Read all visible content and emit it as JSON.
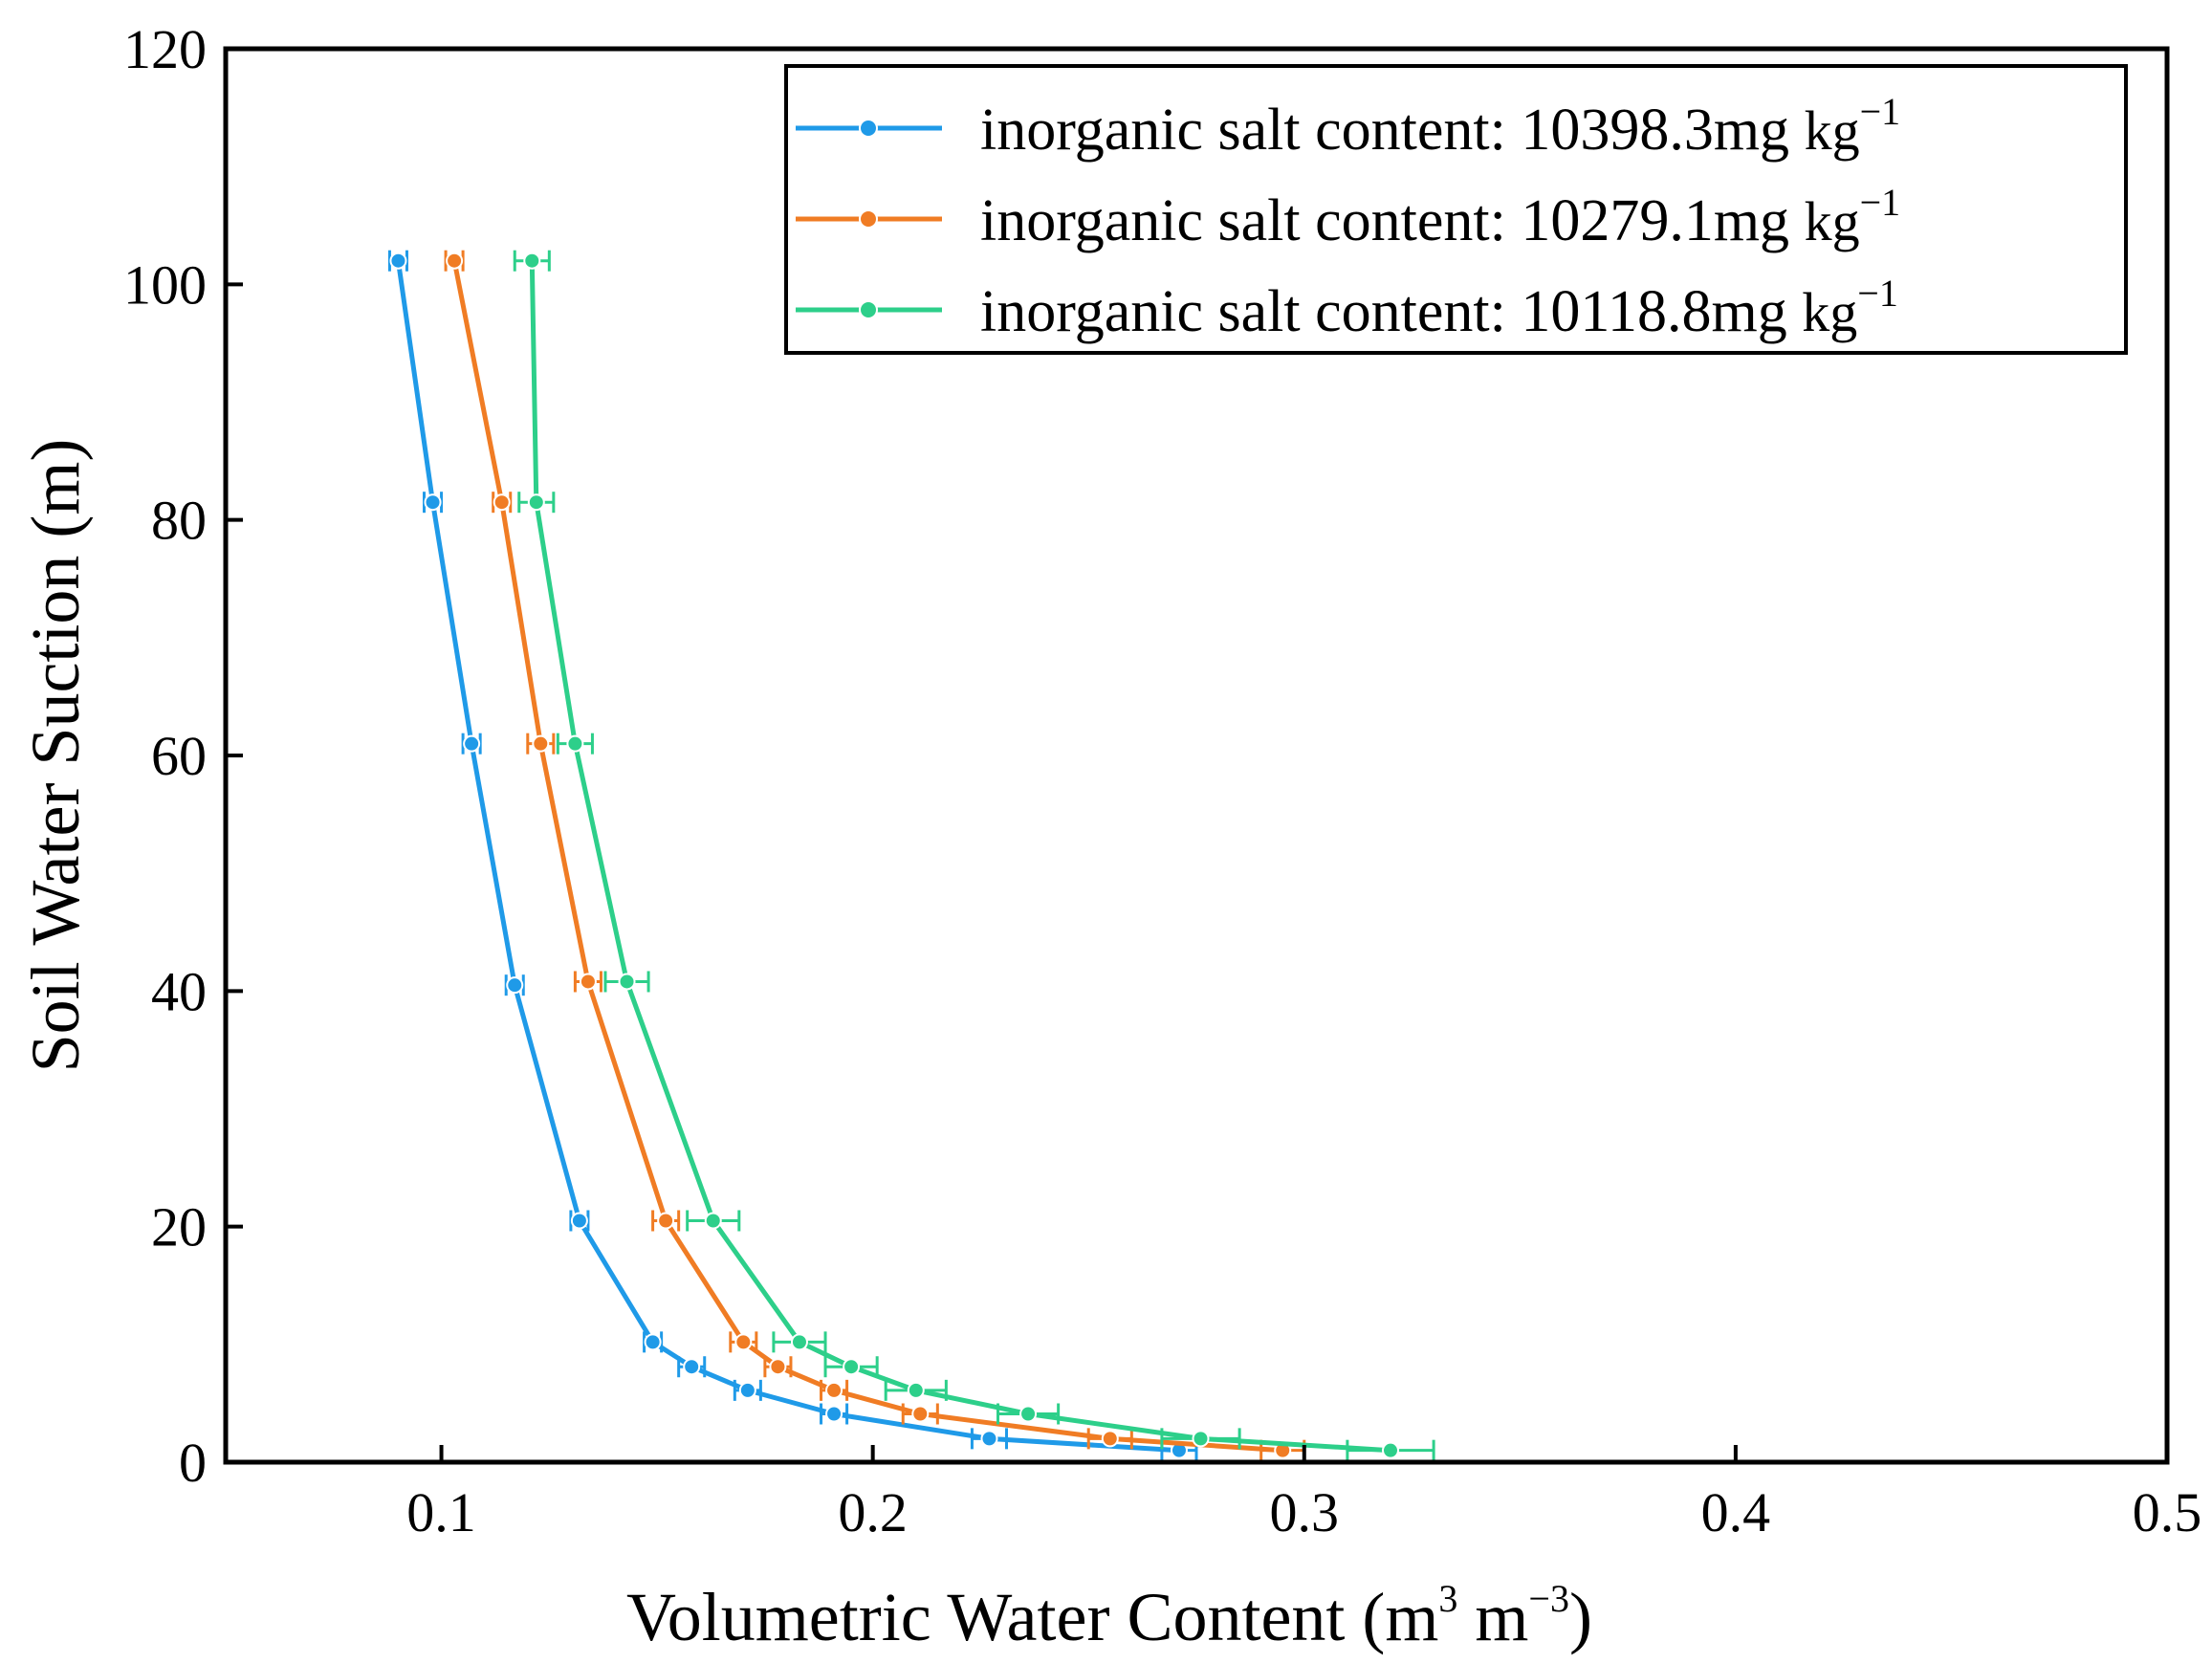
{
  "chart_data": {
    "type": "line",
    "xlabel": "Volumetric Water Content (m",
    "xlabel_sup1": "3",
    "xlabel_mid": " m",
    "xlabel_sup2": "−3",
    "xlabel_end": ")",
    "ylabel": "Soil Water Suction (m)",
    "xlim": [
      0.05,
      0.5
    ],
    "ylim": [
      0,
      120
    ],
    "x_ticks": [
      0.1,
      0.2,
      0.3,
      0.4,
      0.5
    ],
    "x_tick_labels": [
      "0.1",
      "0.2",
      "0.3",
      "0.4",
      "0.5"
    ],
    "y_ticks": [
      0,
      20,
      40,
      60,
      80,
      100,
      120
    ],
    "y_tick_labels": [
      "0",
      "20",
      "40",
      "60",
      "80",
      "100",
      "120"
    ],
    "grid": false,
    "legend_position": "top-right",
    "series": [
      {
        "name": "inorganic salt content: 10398.3mg",
        "unit": "kg",
        "unit_sup": "−1",
        "color": "#1f9ae8",
        "y": [
          102,
          81.5,
          61,
          40.5,
          20.5,
          10.2,
          8.1,
          6.1,
          4.1,
          2.0,
          1.0
        ],
        "x": [
          0.09,
          0.098,
          0.107,
          0.117,
          0.132,
          0.149,
          0.158,
          0.171,
          0.191,
          0.227,
          0.271
        ],
        "xerr": [
          0.002,
          0.002,
          0.002,
          0.002,
          0.002,
          0.002,
          0.003,
          0.003,
          0.003,
          0.004,
          0.004
        ]
      },
      {
        "name": "inorganic salt content: 10279.1mg",
        "unit": "kg",
        "unit_sup": "−1",
        "color": "#f07c24",
        "y": [
          102,
          81.5,
          61,
          40.8,
          20.5,
          10.2,
          8.1,
          6.1,
          4.1,
          2.0,
          1.0
        ],
        "x": [
          0.103,
          0.114,
          0.123,
          0.134,
          0.152,
          0.17,
          0.178,
          0.191,
          0.211,
          0.255,
          0.295
        ],
        "xerr": [
          0.002,
          0.002,
          0.003,
          0.003,
          0.003,
          0.003,
          0.003,
          0.003,
          0.004,
          0.005,
          0.005
        ]
      },
      {
        "name": "inorganic salt content: 10118.8mg",
        "unit": "kg",
        "unit_sup": "−1",
        "color": "#2dcf8a",
        "y": [
          102,
          81.5,
          61,
          40.8,
          20.5,
          10.2,
          8.1,
          6.1,
          4.1,
          2.0,
          1.0
        ],
        "x": [
          0.121,
          0.122,
          0.131,
          0.143,
          0.163,
          0.183,
          0.195,
          0.21,
          0.236,
          0.276,
          0.32
        ],
        "xerr": [
          0.004,
          0.004,
          0.004,
          0.005,
          0.006,
          0.006,
          0.006,
          0.007,
          0.007,
          0.009,
          0.01
        ]
      }
    ]
  }
}
